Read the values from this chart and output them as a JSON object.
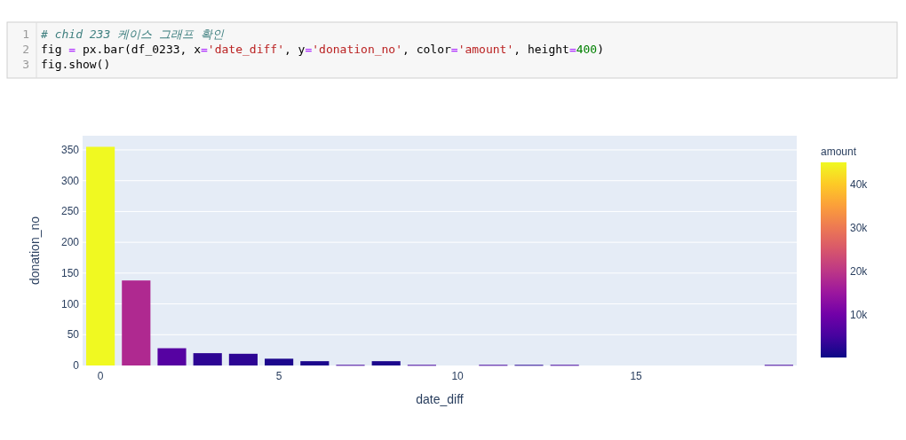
{
  "chart_data": {
    "type": "bar",
    "xlabel": "date_diff",
    "ylabel": "donation_no",
    "clabel": "amount",
    "annotations": [
      "1",
      "# chid 233 케이스 그래프 확인",
      "2",
      "fig = px.bar(df_0233, x='date_diff', y='donation_no', color='amount', height=400)",
      "3",
      "fig.show()"
    ],
    "x": [
      0,
      1,
      2,
      3,
      4,
      5,
      6,
      7,
      8,
      9,
      11,
      12,
      13,
      19
    ],
    "values": [
      355,
      138,
      28,
      20,
      19,
      11,
      7,
      1,
      7,
      1,
      1,
      1,
      1,
      1
    ],
    "cvalues": [
      45100,
      18000,
      7000,
      3000,
      3000,
      1500,
      1500,
      5000,
      1500,
      5000,
      5000,
      2500,
      5000,
      5000
    ],
    "xlim": [
      -0.5,
      19.5
    ],
    "ylim": [
      0,
      373
    ],
    "xticks": [
      0,
      5,
      10,
      15
    ],
    "yticks": [
      0,
      50,
      100,
      150,
      200,
      250,
      300,
      350
    ],
    "clim": [
      200,
      45100
    ],
    "cticks": [
      {
        "value": 10000,
        "label": "10k"
      },
      {
        "value": 20000,
        "label": "20k"
      },
      {
        "value": 30000,
        "label": "30k"
      },
      {
        "value": 40000,
        "label": "40k"
      }
    ],
    "grid": "y"
  }
}
